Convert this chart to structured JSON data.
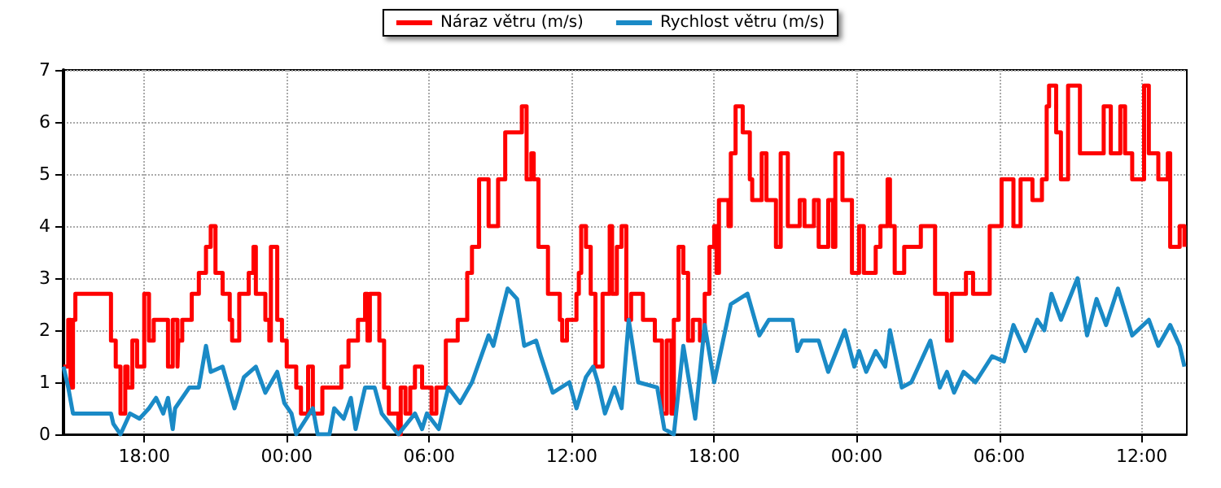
{
  "chart_data": {
    "type": "line",
    "xlim": [
      "--01-01T14:36",
      "--01-03T13:54"
    ],
    "xticks": [
      {
        "value": "--01-01T18:00",
        "label": "18:00"
      },
      {
        "value": "--01-02T00:00",
        "label": "00:00"
      },
      {
        "value": "--01-02T06:00",
        "label": "06:00"
      },
      {
        "value": "--01-02T12:00",
        "label": "12:00"
      },
      {
        "value": "--01-02T18:00",
        "label": "18:00"
      },
      {
        "value": "--01-03T00:00",
        "label": "00:00"
      },
      {
        "value": "--01-03T06:00",
        "label": "06:00"
      },
      {
        "value": "--01-03T12:00",
        "label": "12:00"
      }
    ],
    "ylim": [
      0,
      7
    ],
    "yticks": [
      0,
      1,
      2,
      3,
      4,
      5,
      6,
      7
    ],
    "grid": true,
    "legend": "top",
    "marker": "none",
    "line_style": "solid",
    "series": [
      {
        "name": "Náraz větru (m/s)",
        "type": "step",
        "color": "#ff0000",
        "x": [
          "--01-01T14:36",
          "--01-01T14:48",
          "--01-01T14:54",
          "--01-01T15:00",
          "--01-01T15:06",
          "--01-01T16:36",
          "--01-01T16:48",
          "--01-01T17:00",
          "--01-01T17:12",
          "--01-01T17:18",
          "--01-01T17:30",
          "--01-01T17:42",
          "--01-01T18:00",
          "--01-01T18:12",
          "--01-01T18:24",
          "--01-01T19:00",
          "--01-01T19:12",
          "--01-01T19:24",
          "--01-01T19:26",
          "--01-01T19:36",
          "--01-01T20:00",
          "--01-01T20:18",
          "--01-01T20:36",
          "--01-01T20:48",
          "--01-01T21:00",
          "--01-01T21:18",
          "--01-01T21:36",
          "--01-01T21:42",
          "--01-01T22:00",
          "--01-01T22:24",
          "--01-01T22:36",
          "--01-01T22:42",
          "--01-01T23:06",
          "--01-01T23:16",
          "--01-01T23:20",
          "--01-01T23:36",
          "--01-01T23:48",
          "--01-02T00:00",
          "--01-02T00:24",
          "--01-02T00:36",
          "--01-02T00:54",
          "--01-02T01:06",
          "--01-02T01:30",
          "--01-02T02:18",
          "--01-02T02:36",
          "--01-02T03:00",
          "--01-02T03:18",
          "--01-02T03:24",
          "--01-02T03:30",
          "--01-02T03:54",
          "--01-02T04:06",
          "--01-02T04:18",
          "--01-02T04:42",
          "--01-02T04:48",
          "--01-02T05:00",
          "--01-02T05:12",
          "--01-02T05:24",
          "--01-02T05:42",
          "--01-02T06:06",
          "--01-02T06:18",
          "--01-02T06:42",
          "--01-02T07:12",
          "--01-02T07:36",
          "--01-02T07:48",
          "--01-02T08:06",
          "--01-02T08:30",
          "--01-02T08:54",
          "--01-02T09:12",
          "--01-02T09:54",
          "--01-02T10:06",
          "--01-02T10:18",
          "--01-02T10:24",
          "--01-02T10:36",
          "--01-02T11:00",
          "--01-02T11:30",
          "--01-02T11:36",
          "--01-02T11:48",
          "--01-02T12:12",
          "--01-02T12:18",
          "--01-02T12:24",
          "--01-02T12:36",
          "--01-02T12:48",
          "--01-02T13:00",
          "--01-02T13:18",
          "--01-02T13:36",
          "--01-02T13:42",
          "--01-02T13:54",
          "--01-02T14:06",
          "--01-02T14:18",
          "--01-02T14:30",
          "--01-02T15:00",
          "--01-02T15:30",
          "--01-02T15:48",
          "--01-02T16:00",
          "--01-02T16:12",
          "--01-02T16:18",
          "--01-02T16:30",
          "--01-02T16:42",
          "--01-02T16:54",
          "--01-02T17:06",
          "--01-02T17:24",
          "--01-02T17:36",
          "--01-02T17:48",
          "--01-02T18:00",
          "--01-02T18:06",
          "--01-02T18:12",
          "--01-02T18:36",
          "--01-02T18:42",
          "--01-02T18:54",
          "--01-02T19:12",
          "--01-02T19:30",
          "--01-02T19:36",
          "--01-02T20:00",
          "--01-02T20:12",
          "--01-02T20:36",
          "--01-02T20:48",
          "--01-02T21:06",
          "--01-02T21:36",
          "--01-02T21:48",
          "--01-02T22:12",
          "--01-02T22:24",
          "--01-02T22:48",
          "--01-02T23:00",
          "--01-02T23:06",
          "--01-02T23:24",
          "--01-02T23:48",
          "--01-03T00:06",
          "--01-03T00:18",
          "--01-03T00:48",
          "--01-03T01:00",
          "--01-03T01:18",
          "--01-03T01:24",
          "--01-03T01:36",
          "--01-03T02:00",
          "--01-03T02:42",
          "--01-03T03:18",
          "--01-03T03:48",
          "--01-03T04:00",
          "--01-03T04:36",
          "--01-03T04:54",
          "--01-03T05:36",
          "--01-03T06:06",
          "--01-03T06:36",
          "--01-03T06:54",
          "--01-03T07:24",
          "--01-03T07:48",
          "--01-03T08:00",
          "--01-03T08:06",
          "--01-03T08:24",
          "--01-03T08:36",
          "--01-03T08:54",
          "--01-03T09:24",
          "--01-03T10:24",
          "--01-03T10:42",
          "--01-03T11:06",
          "--01-03T11:18",
          "--01-03T11:36",
          "--01-03T12:06",
          "--01-03T12:18",
          "--01-03T12:42",
          "--01-03T13:06",
          "--01-03T13:12",
          "--01-03T13:36",
          "--01-03T13:48"
        ],
        "values": [
          1.3,
          2.2,
          0.9,
          2.2,
          2.7,
          1.8,
          1.3,
          0.4,
          1.3,
          0.9,
          1.8,
          1.3,
          2.7,
          1.8,
          2.2,
          1.3,
          2.2,
          1.3,
          1.8,
          2.2,
          2.7,
          3.1,
          3.6,
          4.0,
          3.1,
          2.7,
          2.2,
          1.8,
          2.7,
          3.1,
          3.6,
          2.7,
          2.2,
          1.8,
          3.6,
          2.2,
          1.8,
          1.3,
          0.9,
          0.4,
          1.3,
          0.4,
          0.9,
          1.3,
          1.8,
          2.2,
          2.7,
          1.8,
          2.7,
          1.8,
          0.9,
          0.4,
          0,
          0.9,
          0.4,
          0.9,
          1.3,
          0.9,
          0.4,
          0.9,
          1.8,
          2.2,
          3.1,
          3.6,
          4.9,
          4.0,
          4.9,
          5.8,
          6.3,
          4.9,
          5.4,
          4.9,
          3.6,
          2.7,
          2.2,
          1.8,
          2.2,
          2.7,
          3.1,
          4.0,
          3.6,
          2.7,
          1.3,
          2.7,
          4.0,
          2.7,
          3.6,
          4.0,
          2.2,
          2.7,
          2.2,
          1.8,
          0.4,
          1.8,
          0.4,
          2.2,
          3.6,
          3.1,
          1.8,
          2.2,
          1.8,
          2.7,
          3.6,
          4.0,
          3.1,
          4.5,
          4.0,
          5.4,
          6.3,
          5.8,
          4.9,
          4.5,
          5.4,
          4.5,
          3.6,
          5.4,
          4.0,
          4.5,
          4.0,
          4.5,
          3.6,
          4.5,
          3.6,
          5.4,
          4.5,
          3.1,
          4.0,
          3.1,
          3.6,
          4.0,
          4.9,
          4.0,
          3.1,
          3.6,
          4.0,
          2.7,
          1.8,
          2.7,
          3.1,
          2.7,
          4.0,
          4.9,
          4.0,
          4.9,
          4.5,
          4.9,
          6.3,
          6.7,
          5.8,
          4.9,
          6.7,
          5.4,
          6.3,
          5.4,
          6.3,
          5.4,
          4.9,
          6.7,
          5.4,
          4.9,
          5.4,
          3.6,
          4.0,
          3.6
        ]
      },
      {
        "name": "Rychlost větru (m/s)",
        "color": "#1a8ac6",
        "x": [
          "--01-01T14:36",
          "--01-01T14:48",
          "--01-01T15:00",
          "--01-01T16:36",
          "--01-01T16:42",
          "--01-01T17:00",
          "--01-01T17:24",
          "--01-01T17:48",
          "--01-01T18:12",
          "--01-01T18:30",
          "--01-01T18:48",
          "--01-01T19:00",
          "--01-01T19:12",
          "--01-01T19:18",
          "--01-01T19:54",
          "--01-01T20:18",
          "--01-01T20:36",
          "--01-01T20:48",
          "--01-01T21:18",
          "--01-01T21:48",
          "--01-01T22:12",
          "--01-01T22:42",
          "--01-01T23:06",
          "--01-01T23:36",
          "--01-01T23:54",
          "--01-02T00:12",
          "--01-02T00:24",
          "--01-02T01:06",
          "--01-02T01:18",
          "--01-02T01:48",
          "--01-02T02:00",
          "--01-02T02:24",
          "--01-02T02:42",
          "--01-02T02:54",
          "--01-02T03:18",
          "--01-02T03:42",
          "--01-02T04:00",
          "--01-02T04:42",
          "--01-02T05:24",
          "--01-02T05:42",
          "--01-02T05:54",
          "--01-02T06:24",
          "--01-02T06:48",
          "--01-02T07:18",
          "--01-02T07:48",
          "--01-02T08:30",
          "--01-02T08:42",
          "--01-02T09:18",
          "--01-02T09:42",
          "--01-02T10:00",
          "--01-02T10:30",
          "--01-02T10:42",
          "--01-02T11:12",
          "--01-02T11:54",
          "--01-02T12:12",
          "--01-02T12:36",
          "--01-02T12:54",
          "--01-02T13:06",
          "--01-02T13:24",
          "--01-02T13:48",
          "--01-02T14:06",
          "--01-02T14:24",
          "--01-02T14:48",
          "--01-02T15:36",
          "--01-02T15:54",
          "--01-02T16:18",
          "--01-02T16:42",
          "--01-02T17:12",
          "--01-02T17:36",
          "--01-02T18:00",
          "--01-02T18:42",
          "--01-02T19:24",
          "--01-02T19:54",
          "--01-02T20:18",
          "--01-02T21:18",
          "--01-02T21:30",
          "--01-02T21:42",
          "--01-02T22:24",
          "--01-02T22:48",
          "--01-02T23:30",
          "--01-02T23:54",
          "--01-03T00:06",
          "--01-03T00:24",
          "--01-03T00:48",
          "--01-03T01:12",
          "--01-03T01:24",
          "--01-03T01:54",
          "--01-03T02:18",
          "--01-03T03:06",
          "--01-03T03:30",
          "--01-03T03:48",
          "--01-03T04:06",
          "--01-03T04:30",
          "--01-03T05:00",
          "--01-03T05:42",
          "--01-03T06:12",
          "--01-03T06:36",
          "--01-03T07:06",
          "--01-03T07:36",
          "--01-03T07:54",
          "--01-03T08:12",
          "--01-03T08:36",
          "--01-03T09:18",
          "--01-03T09:42",
          "--01-03T10:06",
          "--01-03T10:30",
          "--01-03T11:00",
          "--01-03T11:36",
          "--01-03T12:18",
          "--01-03T12:42",
          "--01-03T13:12",
          "--01-03T13:36",
          "--01-03T13:48"
        ],
        "values": [
          1.3,
          0.9,
          0.4,
          0.4,
          0.2,
          0,
          0.4,
          0.3,
          0.5,
          0.7,
          0.4,
          0.7,
          0.1,
          0.5,
          0.9,
          0.9,
          1.7,
          1.2,
          1.3,
          0.5,
          1.1,
          1.3,
          0.8,
          1.2,
          0.6,
          0.4,
          0,
          0.5,
          0,
          0,
          0.5,
          0.3,
          0.7,
          0.1,
          0.9,
          0.9,
          0.4,
          0,
          0.4,
          0.1,
          0.4,
          0.1,
          0.9,
          0.6,
          1.0,
          1.9,
          1.7,
          2.8,
          2.6,
          1.7,
          1.8,
          1.5,
          0.8,
          1.0,
          0.5,
          1.1,
          1.3,
          1.0,
          0.4,
          0.9,
          0.5,
          2.2,
          1.0,
          0.9,
          0.1,
          0,
          1.7,
          0.3,
          2.1,
          1.0,
          2.5,
          2.7,
          1.9,
          2.2,
          2.2,
          1.6,
          1.8,
          1.8,
          1.2,
          2.0,
          1.3,
          1.6,
          1.2,
          1.6,
          1.3,
          2.0,
          0.9,
          1.0,
          1.8,
          0.9,
          1.2,
          0.8,
          1.2,
          1.0,
          1.5,
          1.4,
          2.1,
          1.6,
          2.2,
          2.0,
          2.7,
          2.2,
          3.0,
          1.9,
          2.6,
          2.1,
          2.8,
          1.9,
          2.2,
          1.7,
          2.1,
          1.7,
          1.3
        ]
      }
    ]
  }
}
